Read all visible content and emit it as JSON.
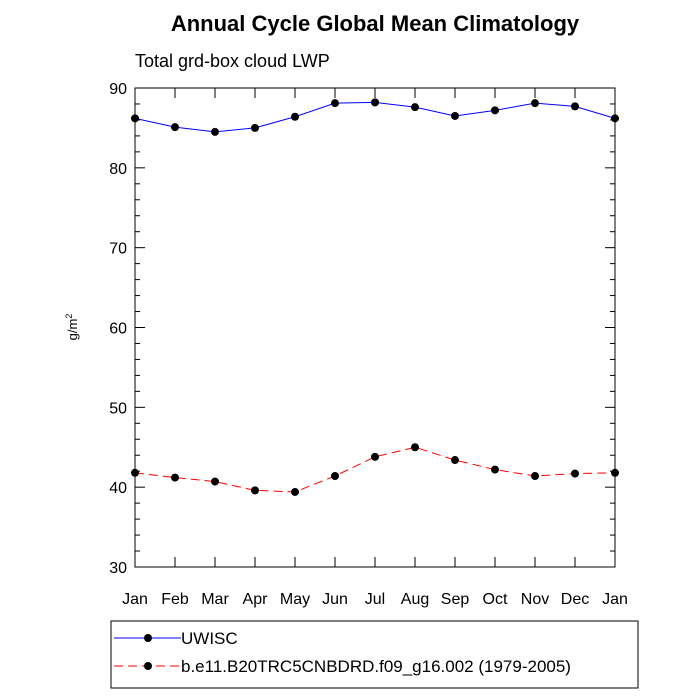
{
  "chart_data": {
    "type": "line",
    "title": "Annual Cycle Global Mean Climatology",
    "subtitle": "Total grd-box cloud LWP",
    "ylabel_base": "g/m",
    "ylabel_sup": "2",
    "xlabel": "",
    "ylim": [
      30,
      90
    ],
    "yticks": [
      30,
      40,
      50,
      60,
      70,
      80,
      90
    ],
    "ytick_labels": [
      "30",
      "40",
      "50",
      "60",
      "70",
      "80",
      "90"
    ],
    "categories": [
      "Jan",
      "Feb",
      "Mar",
      "Apr",
      "May",
      "Jun",
      "Jul",
      "Aug",
      "Sep",
      "Oct",
      "Nov",
      "Dec",
      "Jan"
    ],
    "series": [
      {
        "name": "UWISC",
        "color": "#0000ff",
        "dash": "solid",
        "values": [
          86.2,
          85.1,
          84.5,
          85.0,
          86.4,
          88.1,
          88.2,
          87.6,
          86.5,
          87.2,
          88.1,
          87.7,
          86.2
        ]
      },
      {
        "name": "b.e11.B20TRC5CNBDRD.f09_g16.002 (1979-2005)",
        "color": "#ff0000",
        "dash": "dashed",
        "values": [
          41.8,
          41.2,
          40.7,
          39.6,
          39.4,
          41.4,
          43.8,
          45.0,
          43.4,
          42.2,
          41.4,
          41.7,
          41.8
        ]
      }
    ],
    "marker_color": "#000000",
    "legend_position": "bottom-left"
  }
}
